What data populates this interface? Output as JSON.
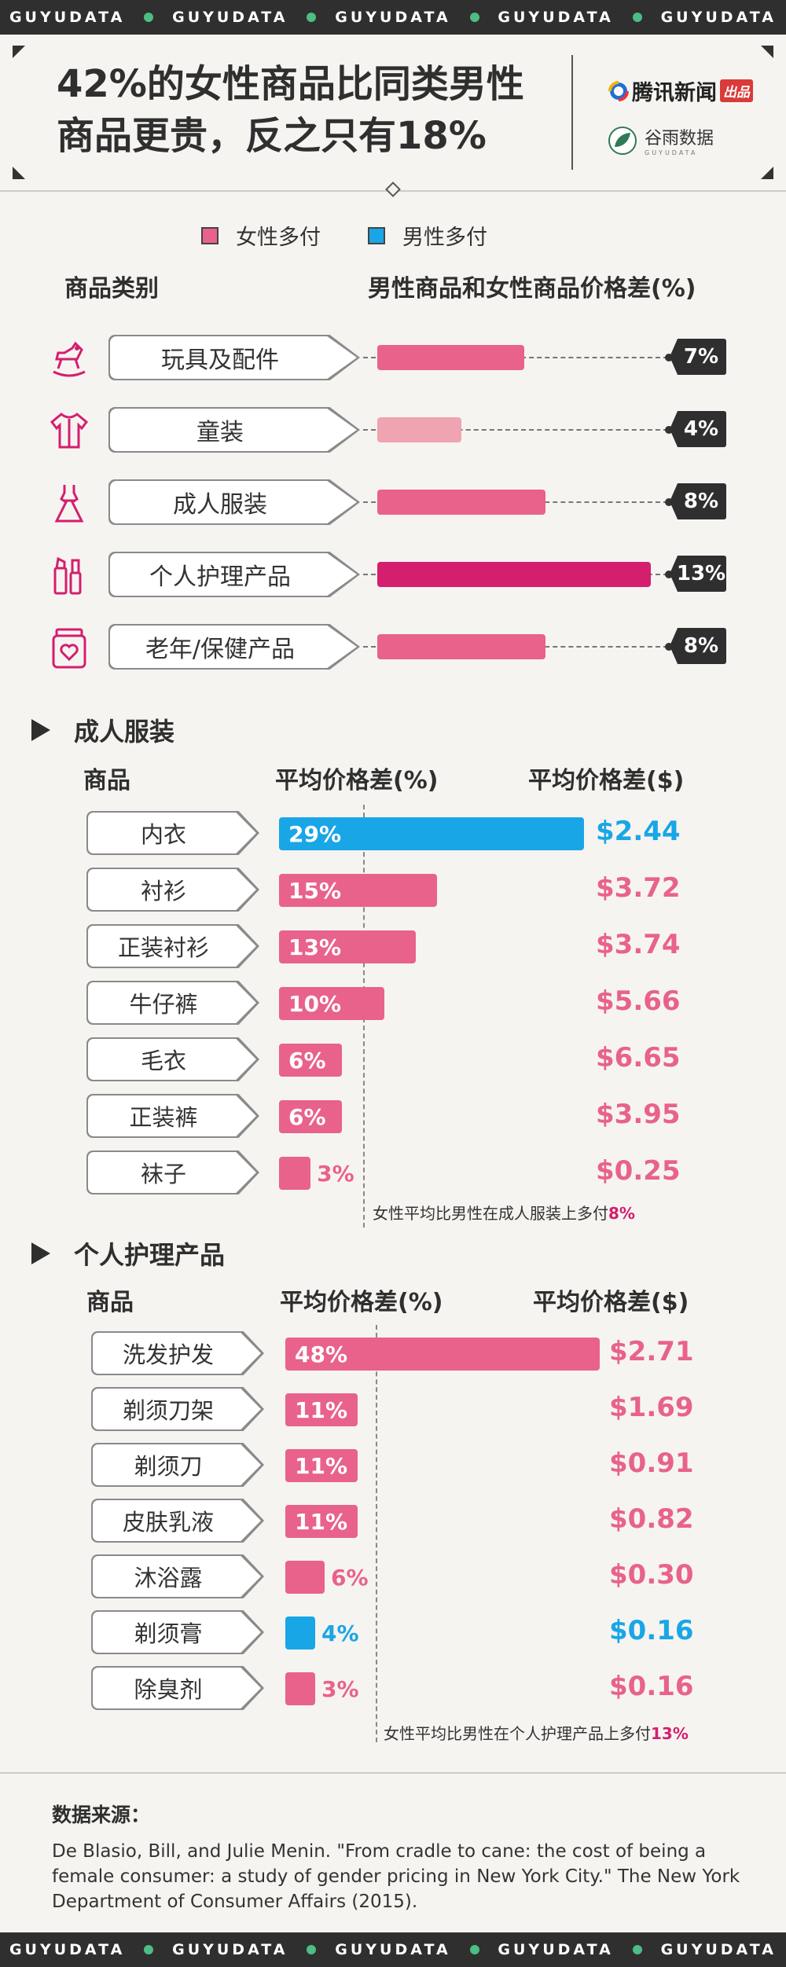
{
  "band": {
    "word": "GUYUDATA"
  },
  "header": {
    "title_line1": "42%的女性商品比同类男性",
    "title_line2": "商品更贵，反之只有18%",
    "logo1": "腾讯新闻",
    "logo1_badge": "出品",
    "logo2": "谷雨数据",
    "logo2_sub": "GUYUDATA"
  },
  "legend": [
    {
      "label": "女性多付",
      "color": "#e8628c"
    },
    {
      "label": "男性多付",
      "color": "#19a6e6"
    }
  ],
  "overview": {
    "col_category": "商品类别",
    "col_diff": "男性商品和女性商品价格差(%)",
    "rows": [
      {
        "label": "玩具及配件",
        "icon": "rocking-horse-icon",
        "value": 7,
        "value_label": "7%",
        "color": "#e8628c"
      },
      {
        "label": "童装",
        "icon": "kids-shirt-icon",
        "value": 4,
        "value_label": "4%",
        "color": "#f0a3b1"
      },
      {
        "label": "成人服装",
        "icon": "dress-icon",
        "value": 8,
        "value_label": "8%",
        "color": "#e8628c"
      },
      {
        "label": "个人护理产品",
        "icon": "cosmetics-icon",
        "value": 13,
        "value_label": "13%",
        "color": "#d41e6e"
      },
      {
        "label": "老年/保健产品",
        "icon": "health-jar-icon",
        "value": 8,
        "value_label": "8%",
        "color": "#e8628c"
      }
    ]
  },
  "chart_data": [
    {
      "type": "bar",
      "title": "成人服装",
      "xlabel": "平均价格差(%)",
      "ylabel": "商品",
      "extra_column": "平均价格差($)",
      "categories": [
        "内衣",
        "衬衫",
        "正装衬衫",
        "牛仔裤",
        "毛衣",
        "正装裤",
        "袜子"
      ],
      "series": [
        {
          "name": "平均价格差(%)",
          "values": [
            29,
            15,
            13,
            10,
            6,
            6,
            3
          ]
        },
        {
          "name": "平均价格差($)",
          "values": [
            2.44,
            3.72,
            3.74,
            5.66,
            6.65,
            3.95,
            0.25
          ]
        }
      ],
      "value_labels": [
        "29%",
        "15%",
        "13%",
        "10%",
        "6%",
        "6%",
        "3%"
      ],
      "dollar_labels": [
        "$2.44",
        "$3.72",
        "$3.74",
        "$5.66",
        "$6.65",
        "$3.95",
        "$0.25"
      ],
      "payer": [
        "male",
        "female",
        "female",
        "female",
        "female",
        "female",
        "female"
      ],
      "note_prefix": "女性平均比男性在成人服装上多付",
      "note_value": "8%"
    },
    {
      "type": "bar",
      "title": "个人护理产品",
      "xlabel": "平均价格差(%)",
      "ylabel": "商品",
      "extra_column": "平均价格差($)",
      "categories": [
        "洗发护发",
        "剃须刀架",
        "剃须刀",
        "皮肤乳液",
        "沐浴露",
        "剃须膏",
        "除臭剂"
      ],
      "series": [
        {
          "name": "平均价格差(%)",
          "values": [
            48,
            11,
            11,
            11,
            6,
            4,
            3
          ]
        },
        {
          "name": "平均价格差($)",
          "values": [
            2.71,
            1.69,
            0.91,
            0.82,
            0.3,
            0.16,
            0.16
          ]
        }
      ],
      "value_labels": [
        "48%",
        "11%",
        "11%",
        "11%",
        "6%",
        "4%",
        "3%"
      ],
      "dollar_labels": [
        "$2.71",
        "$1.69",
        "$0.91",
        "$0.82",
        "$0.30",
        "$0.16",
        "$0.16"
      ],
      "payer": [
        "female",
        "female",
        "female",
        "female",
        "female",
        "male",
        "female"
      ],
      "note_prefix": "女性平均比男性在个人护理产品上多付",
      "note_value": "13%"
    }
  ],
  "colors": {
    "female": "#e8628c",
    "male": "#19a6e6",
    "accent": "#d41e6e",
    "dark": "#2f2f2f"
  },
  "source": {
    "title": "数据来源：",
    "text": "De Blasio, Bill, and Julie Menin. \"From cradle to cane: the cost of being a female consumer: a study of gender pricing in New York City.\" The New York Department of Consumer Affairs (2015)."
  }
}
